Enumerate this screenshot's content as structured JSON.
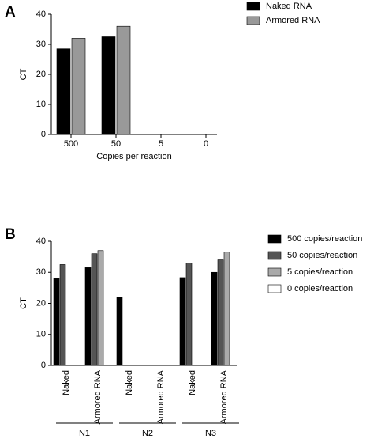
{
  "chart_data": [
    {
      "type": "bar",
      "panel": "A",
      "y_label": "CT",
      "x_label": "Copies per reaction",
      "categories": [
        "500",
        "50",
        "5",
        "0"
      ],
      "series": [
        {
          "name": "Naked RNA",
          "color": "#000000",
          "values": [
            28.5,
            32.5,
            null,
            null
          ]
        },
        {
          "name": "Armored RNA",
          "color": "#999999",
          "values": [
            32,
            36,
            null,
            null
          ]
        }
      ],
      "ylim": [
        0,
        40
      ],
      "yticks": [
        0,
        10,
        20,
        30,
        40
      ]
    },
    {
      "type": "bar",
      "panel": "B",
      "y_label": "CT",
      "categories": [
        "Naked",
        "Armored RNA",
        "Naked",
        "Armored RNA",
        "Naked",
        "Armored RNA"
      ],
      "groups": [
        "N1",
        "N2",
        "N3"
      ],
      "series": [
        {
          "name": "500 copies/reaction",
          "color": "#000000",
          "values": [
            28,
            31.5,
            22,
            null,
            28.3,
            30
          ]
        },
        {
          "name": "50 copies/reaction",
          "color": "#555555",
          "values": [
            32.5,
            36,
            null,
            null,
            33,
            34
          ]
        },
        {
          "name": "5 copies/reaction",
          "color": "#aaaaaa",
          "values": [
            null,
            37,
            null,
            null,
            null,
            36.5
          ]
        },
        {
          "name": "0 copies/reaction",
          "color": "#ffffff",
          "values": [
            null,
            null,
            null,
            null,
            null,
            null
          ]
        }
      ],
      "ylim": [
        0,
        40
      ],
      "yticks": [
        0,
        10,
        20,
        30,
        40
      ]
    }
  ]
}
